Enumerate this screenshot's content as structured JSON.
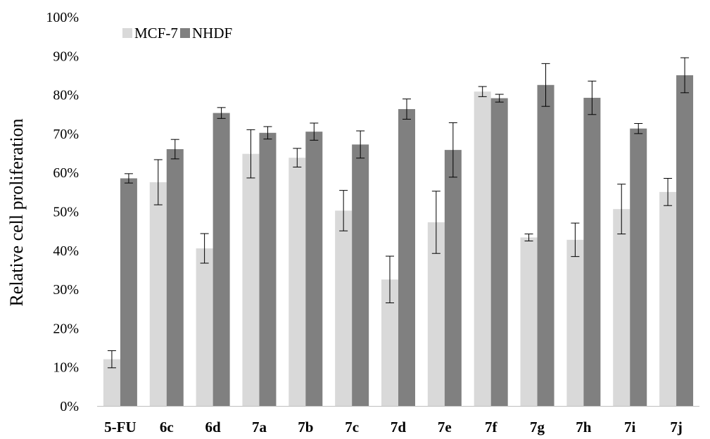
{
  "chart_data": {
    "type": "bar",
    "title": "",
    "xlabel": "",
    "ylabel": "Relative cell proliferation",
    "ylim": [
      0,
      100
    ],
    "y_ticks": [
      "0%",
      "10%",
      "20%",
      "30%",
      "40%",
      "50%",
      "60%",
      "70%",
      "80%",
      "90%",
      "100%"
    ],
    "grid": false,
    "legend_position": "top-left",
    "categories": [
      "5-FU",
      "6c",
      "6d",
      "7a",
      "7b",
      "7c",
      "7d",
      "7e",
      "7f",
      "7g",
      "7h",
      "7i",
      "7j"
    ],
    "series": [
      {
        "name": "MCF-7",
        "color": "#d9d9d9",
        "values": [
          12,
          57.5,
          40.5,
          64.8,
          63.8,
          50.2,
          32.5,
          47.2,
          80.8,
          43.3,
          42.7,
          50.6,
          55
        ],
        "errors": [
          2.2,
          5.8,
          3.8,
          6.2,
          2.4,
          5.2,
          6.0,
          8.0,
          1.3,
          0.9,
          4.3,
          6.4,
          3.5
        ]
      },
      {
        "name": "NHDF",
        "color": "#808080",
        "values": [
          58.5,
          66,
          75.3,
          70.2,
          70.5,
          67.2,
          76.3,
          65.8,
          79.1,
          82.5,
          79.2,
          71.3,
          85
        ],
        "errors": [
          1.2,
          2.5,
          1.4,
          1.6,
          2.2,
          3.5,
          2.6,
          7.0,
          1.0,
          5.5,
          4.3,
          1.3,
          4.5
        ]
      }
    ]
  }
}
